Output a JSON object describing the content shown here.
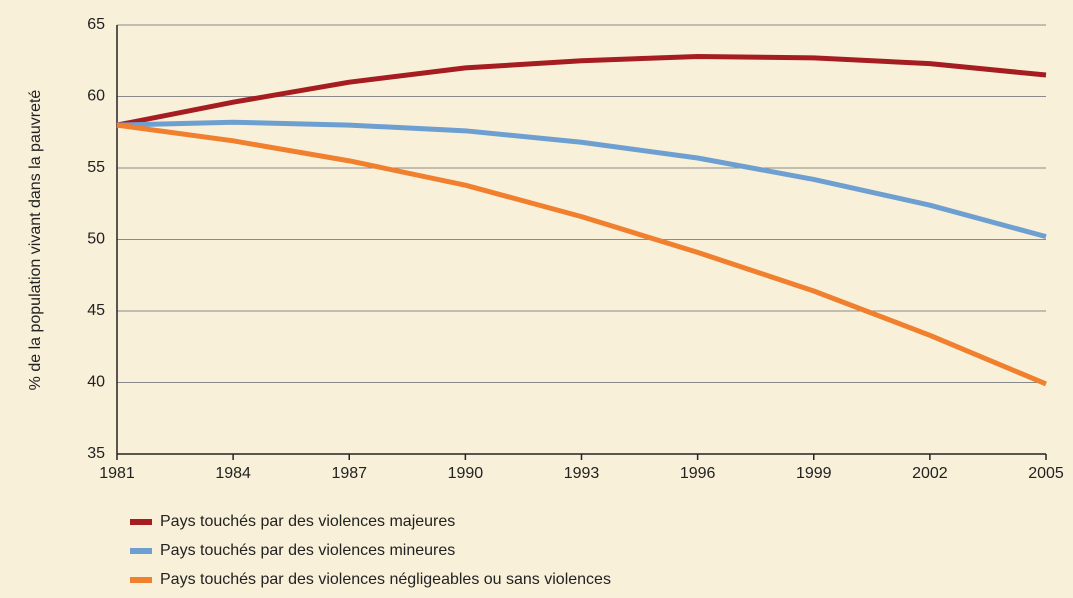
{
  "chart_data": {
    "type": "line",
    "y_label": "% de la population vivant dans la pauvreté",
    "x": [
      1981,
      1984,
      1987,
      1990,
      1993,
      1996,
      1999,
      2002,
      2005
    ],
    "series": [
      {
        "name": "Pays touchés par des violences majeures",
        "color": "#a51d21",
        "values": [
          58,
          59.6,
          61,
          62,
          62.5,
          62.8,
          62.7,
          62.3,
          61.5
        ]
      },
      {
        "name": "Pays touchés par des violences mineures",
        "color": "#6e9fd1",
        "values": [
          58,
          58.2,
          58,
          57.6,
          56.8,
          55.7,
          54.2,
          52.4,
          50.2
        ]
      },
      {
        "name": "Pays touchés par des violences négligeables ou sans violences",
        "color": "#f07f2e",
        "values": [
          58,
          56.9,
          55.5,
          53.8,
          51.6,
          49.1,
          46.4,
          43.3,
          39.9
        ]
      }
    ],
    "xlim": [
      1981,
      2005
    ],
    "xticks": [
      1981,
      1984,
      1987,
      1990,
      1993,
      1996,
      1999,
      2002,
      2005
    ],
    "ylim": [
      35,
      65
    ],
    "yticks": [
      35,
      40,
      45,
      50,
      55,
      60,
      65
    ],
    "grid": true
  }
}
